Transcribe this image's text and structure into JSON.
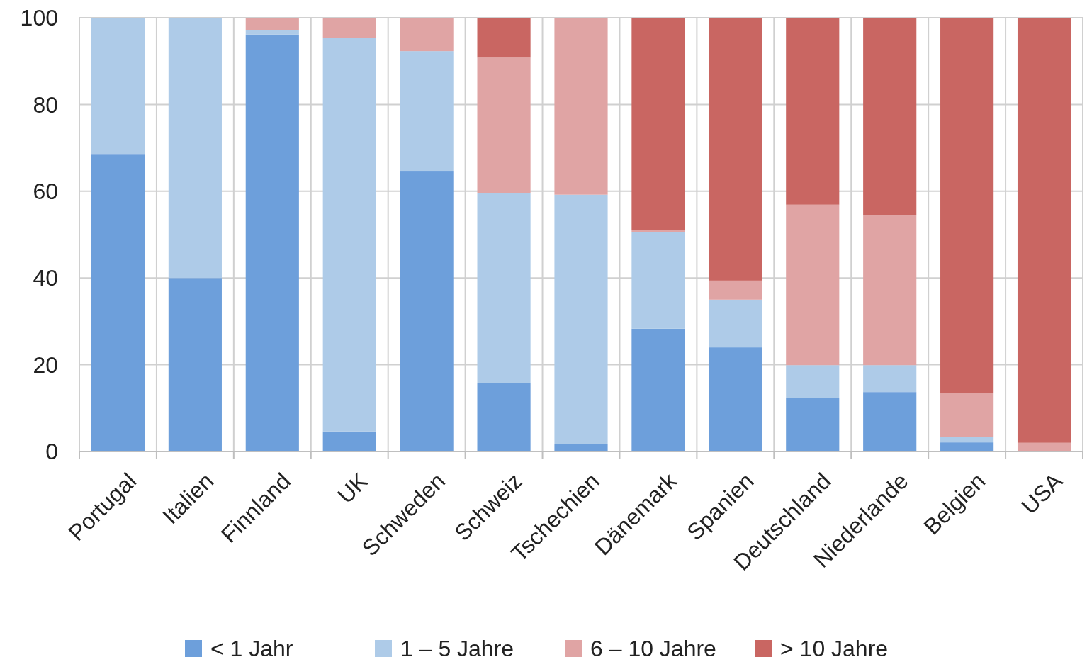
{
  "chart_data": {
    "type": "bar",
    "stacked": true,
    "categories": [
      "Portugal",
      "Italien",
      "Finnland",
      "UK",
      "Schweden",
      "Schweiz",
      "Tschechien",
      "Dänemark",
      "Spanien",
      "Deutschland",
      "Niederlande",
      "Belgien",
      "USA"
    ],
    "series": [
      {
        "name": "< 1 Jahr",
        "color": "#6d9fdb",
        "values": [
          68.6,
          40,
          96.1,
          4.6,
          64.7,
          15.7,
          1.8,
          28.3,
          24,
          12.4,
          13.7,
          2.1,
          0
        ]
      },
      {
        "name": "1 – 5 Jahre",
        "color": "#aecbe8",
        "values": [
          31.4,
          60,
          1.1,
          90.8,
          27.6,
          43.9,
          57.4,
          22.2,
          11,
          7.5,
          6.2,
          1.2,
          0
        ]
      },
      {
        "name": "6 – 10 Jahre",
        "color": "#e0a4a4",
        "values": [
          0,
          0,
          2.8,
          4.6,
          7.7,
          31.2,
          40.8,
          0.5,
          4.4,
          37,
          34.5,
          10.1,
          2
        ]
      },
      {
        "name": "> 10 Jahre",
        "color": "#c96662",
        "values": [
          0,
          0,
          0,
          0,
          0,
          9.2,
          0,
          49,
          60.6,
          43.1,
          45.6,
          86.6,
          98
        ]
      }
    ],
    "ylim": [
      0,
      100
    ],
    "yticks": [
      0,
      20,
      40,
      60,
      80,
      100
    ],
    "grid": true,
    "legend": "bottom"
  }
}
